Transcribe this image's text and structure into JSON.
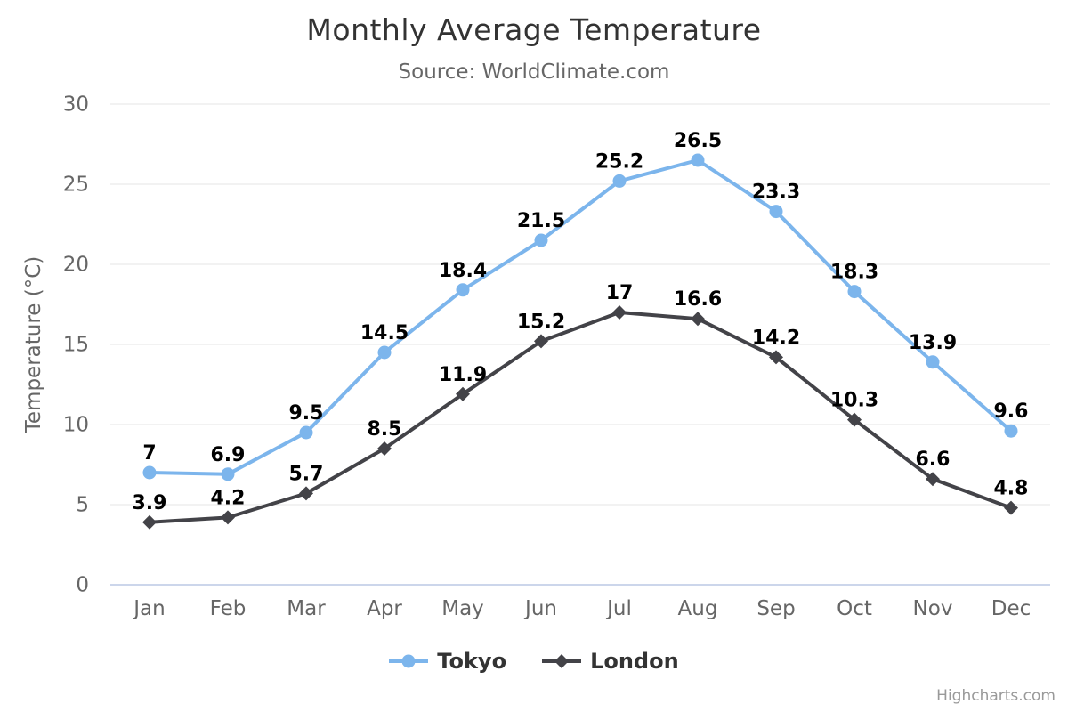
{
  "credits": "Highcharts.com",
  "chart_data": {
    "type": "line",
    "title": "Monthly Average Temperature",
    "subtitle": "Source: WorldClimate.com",
    "categories": [
      "Jan",
      "Feb",
      "Mar",
      "Apr",
      "May",
      "Jun",
      "Jul",
      "Aug",
      "Sep",
      "Oct",
      "Nov",
      "Dec"
    ],
    "series": [
      {
        "name": "Tokyo",
        "marker": "circle",
        "color": "#7cb5ec",
        "values": [
          7,
          6.9,
          9.5,
          14.5,
          18.4,
          21.5,
          25.2,
          26.5,
          23.3,
          18.3,
          13.9,
          9.6
        ]
      },
      {
        "name": "London",
        "marker": "diamond",
        "color": "#434348",
        "values": [
          3.9,
          4.2,
          5.7,
          8.5,
          11.9,
          15.2,
          17,
          16.6,
          14.2,
          10.3,
          6.6,
          4.8
        ]
      }
    ],
    "xlabel": "",
    "ylabel": "Temperature (°C)",
    "ylim": [
      0,
      30
    ],
    "ytick_interval": 5,
    "yticks": [
      0,
      5,
      10,
      15,
      20,
      25,
      30
    ],
    "grid": true,
    "data_labels": true,
    "legend_position": "bottom",
    "colors": {
      "grid_line": "#e6e6e6",
      "axis_line": "#ccd6eb",
      "axis_label": "#666666",
      "title": "#333333",
      "subtitle": "#666666",
      "data_label": "#000000",
      "legend_text": "#333333",
      "credits": "#999999",
      "background": "#ffffff"
    }
  }
}
